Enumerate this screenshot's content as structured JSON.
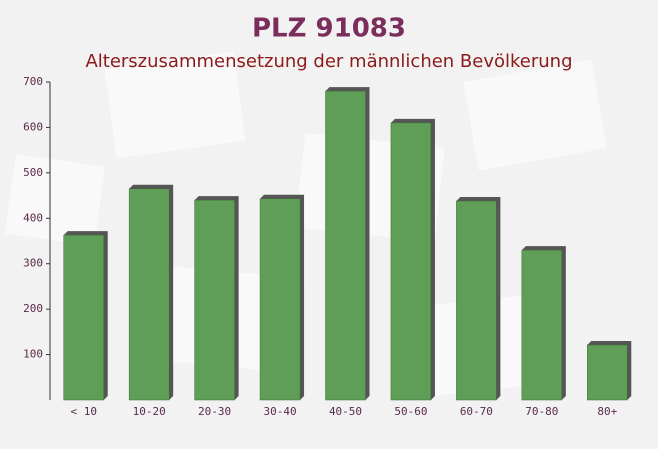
{
  "chart_data": {
    "type": "bar",
    "title": "PLZ 91083",
    "subtitle": "Alterszusammensetzung der männlichen Bevölkerung",
    "categories": [
      "< 10",
      "10-20",
      "20-30",
      "30-40",
      "40-50",
      "50-60",
      "60-70",
      "70-80",
      "80+"
    ],
    "values": [
      363,
      465,
      440,
      443,
      680,
      610,
      438,
      330,
      121
    ],
    "color": "#5f9e56",
    "ylim": [
      0,
      700
    ],
    "yticks": [
      100,
      200,
      300,
      400,
      500,
      600,
      700
    ],
    "grid": false
  }
}
